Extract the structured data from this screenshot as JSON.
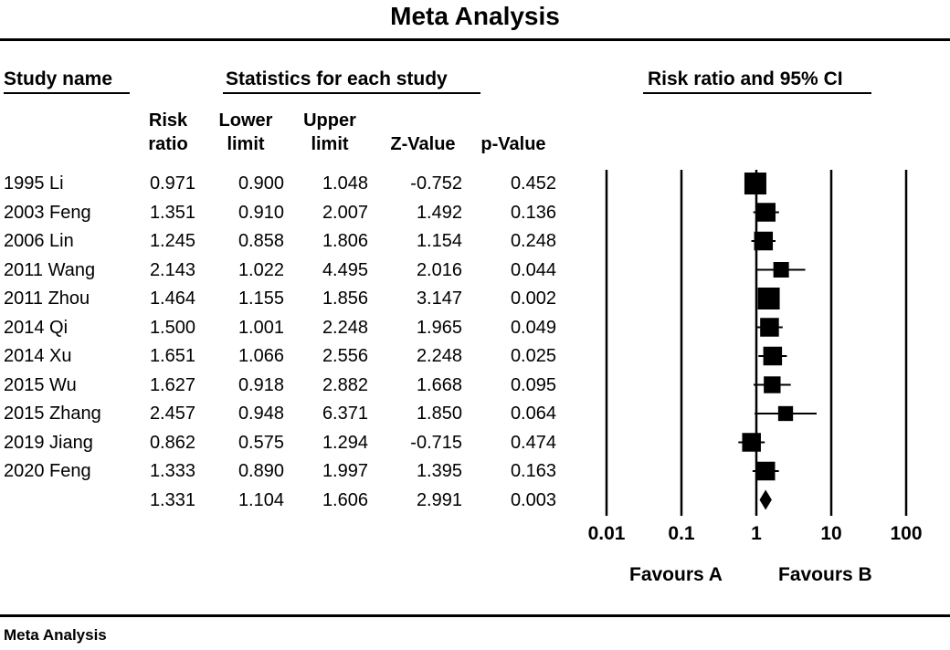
{
  "title": "Meta Analysis",
  "headers": {
    "study_name": "Study name",
    "statistics": "Statistics for each study",
    "forest": "Risk ratio and 95% CI"
  },
  "columns": {
    "risk_ratio": [
      "Risk",
      "ratio"
    ],
    "lower_limit": [
      "Lower",
      "limit"
    ],
    "upper_limit": [
      "Upper",
      "limit"
    ],
    "z_value": "Z-Value",
    "p_value": "p-Value"
  },
  "rows": [
    {
      "study": "1995 Li",
      "rr": "0.971",
      "lower": "0.900",
      "upper": "1.048",
      "z": "-0.752",
      "p": "0.452"
    },
    {
      "study": "2003 Feng",
      "rr": "1.351",
      "lower": "0.910",
      "upper": "2.007",
      "z": "1.492",
      "p": "0.136"
    },
    {
      "study": "2006 Lin",
      "rr": "1.245",
      "lower": "0.858",
      "upper": "1.806",
      "z": "1.154",
      "p": "0.248"
    },
    {
      "study": "2011 Wang",
      "rr": "2.143",
      "lower": "1.022",
      "upper": "4.495",
      "z": "2.016",
      "p": "0.044"
    },
    {
      "study": "2011 Zhou",
      "rr": "1.464",
      "lower": "1.155",
      "upper": "1.856",
      "z": "3.147",
      "p": "0.002"
    },
    {
      "study": "2014 Qi",
      "rr": "1.500",
      "lower": "1.001",
      "upper": "2.248",
      "z": "1.965",
      "p": "0.049"
    },
    {
      "study": "2014 Xu",
      "rr": "1.651",
      "lower": "1.066",
      "upper": "2.556",
      "z": "2.248",
      "p": "0.025"
    },
    {
      "study": "2015 Wu",
      "rr": "1.627",
      "lower": "0.918",
      "upper": "2.882",
      "z": "1.668",
      "p": "0.095"
    },
    {
      "study": "2015 Zhang",
      "rr": "2.457",
      "lower": "0.948",
      "upper": "6.371",
      "z": "1.850",
      "p": "0.064"
    },
    {
      "study": "2019 Jiang",
      "rr": "0.862",
      "lower": "0.575",
      "upper": "1.294",
      "z": "-0.715",
      "p": "0.474"
    },
    {
      "study": "2020 Feng",
      "rr": "1.333",
      "lower": "0.890",
      "upper": "1.997",
      "z": "1.395",
      "p": "0.163"
    }
  ],
  "summary": {
    "rr": "1.331",
    "lower": "1.104",
    "upper": "1.606",
    "z": "2.991",
    "p": "0.003"
  },
  "axis": {
    "ticks": [
      "0.01",
      "0.1",
      "1",
      "10",
      "100"
    ]
  },
  "favours": {
    "left": "Favours A",
    "right": "Favours B"
  },
  "footer": "Meta Analysis",
  "chart_data": {
    "type": "forest",
    "scale": "log",
    "xlim": [
      0.01,
      100
    ],
    "xticks": [
      0.01,
      0.1,
      1,
      10,
      100
    ],
    "xlabel_left": "Favours A",
    "xlabel_right": "Favours B",
    "studies": [
      {
        "name": "1995 Li",
        "rr": 0.971,
        "lower": 0.9,
        "upper": 1.048,
        "weight": 1.0
      },
      {
        "name": "2003 Feng",
        "rr": 1.351,
        "lower": 0.91,
        "upper": 2.007,
        "weight": 0.75
      },
      {
        "name": "2006 Lin",
        "rr": 1.245,
        "lower": 0.858,
        "upper": 1.806,
        "weight": 0.75
      },
      {
        "name": "2011 Wang",
        "rr": 2.143,
        "lower": 1.022,
        "upper": 4.495,
        "weight": 0.5
      },
      {
        "name": "2011 Zhou",
        "rr": 1.464,
        "lower": 1.155,
        "upper": 1.856,
        "weight": 1.0
      },
      {
        "name": "2014 Qi",
        "rr": 1.5,
        "lower": 1.001,
        "upper": 2.248,
        "weight": 0.75
      },
      {
        "name": "2014 Xu",
        "rr": 1.651,
        "lower": 1.066,
        "upper": 2.556,
        "weight": 0.75
      },
      {
        "name": "2015 Wu",
        "rr": 1.627,
        "lower": 0.918,
        "upper": 2.882,
        "weight": 0.6
      },
      {
        "name": "2015 Zhang",
        "rr": 2.457,
        "lower": 0.948,
        "upper": 6.371,
        "weight": 0.45
      },
      {
        "name": "2019 Jiang",
        "rr": 0.862,
        "lower": 0.575,
        "upper": 1.294,
        "weight": 0.75
      },
      {
        "name": "2020 Feng",
        "rr": 1.333,
        "lower": 0.89,
        "upper": 1.997,
        "weight": 0.75
      }
    ],
    "summary": {
      "rr": 1.331,
      "lower": 1.104,
      "upper": 1.606
    }
  }
}
